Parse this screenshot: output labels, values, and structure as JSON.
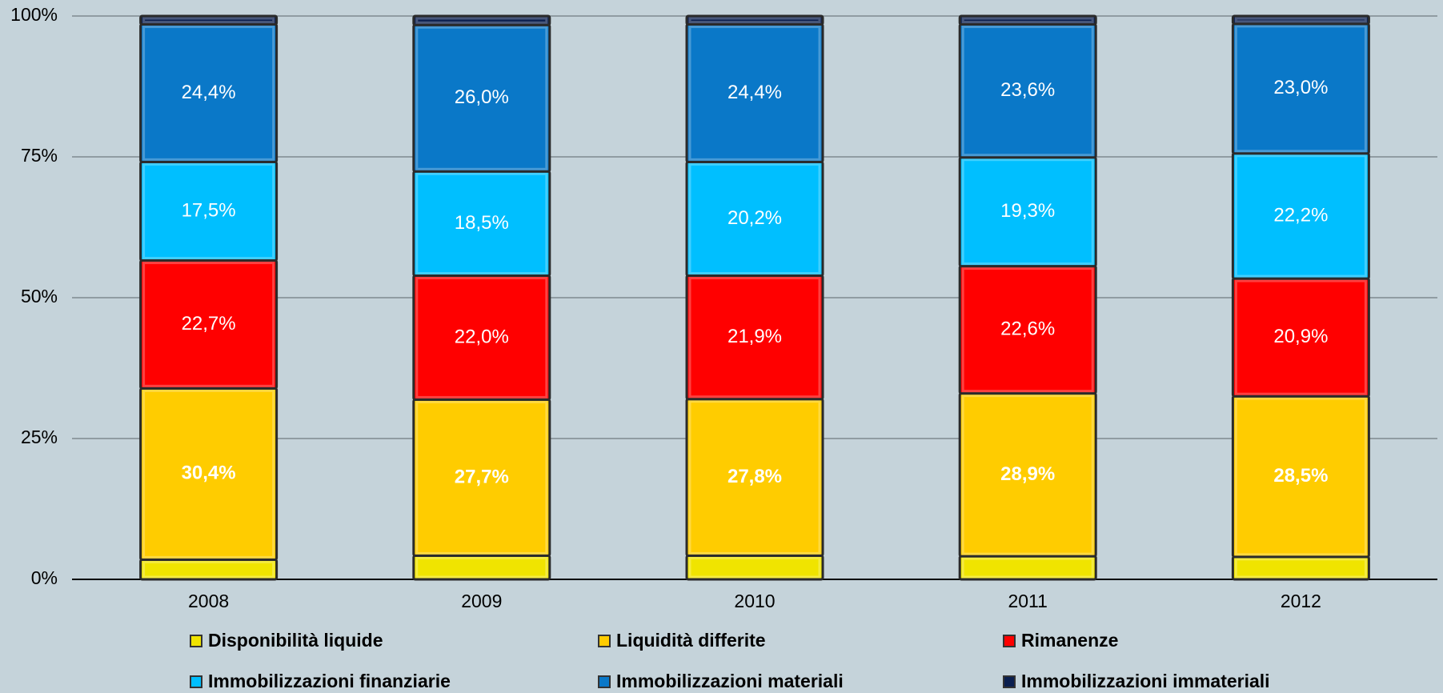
{
  "chart_data": {
    "type": "stacked_bar",
    "categories": [
      "2008",
      "2009",
      "2010",
      "2011",
      "2012"
    ],
    "series": [
      {
        "name": "Disponibilità liquide",
        "color": "#f0e400",
        "values": [
          3.5,
          4.2,
          4.2,
          4.1,
          4.0
        ]
      },
      {
        "name": "Liquidità differite",
        "color": "#ffcc00",
        "values": [
          30.4,
          27.7,
          27.8,
          28.9,
          28.5
        ],
        "value_labels": [
          "30,4%",
          "27,7%",
          "27,8%",
          "28,9%",
          "28,5%"
        ]
      },
      {
        "name": "Rimanenze",
        "color": "#ff0000",
        "values": [
          22.7,
          22.0,
          21.9,
          22.6,
          20.9
        ],
        "value_labels": [
          "22,7%",
          "22,0%",
          "21,9%",
          "22,6%",
          "20,9%"
        ]
      },
      {
        "name": "Immobilizzazioni finanziarie",
        "color": "#00bfff",
        "values": [
          17.5,
          18.5,
          20.2,
          19.3,
          22.2
        ],
        "value_labels": [
          "17,5%",
          "18,5%",
          "20,2%",
          "19,3%",
          "22,2%"
        ]
      },
      {
        "name": "Immobilizzazioni materiali",
        "color": "#0a78c8",
        "values": [
          24.4,
          26.0,
          24.4,
          23.6,
          23.0
        ],
        "value_labels": [
          "24,4%",
          "26,0%",
          "24,4%",
          "23,6%",
          "23,0%"
        ]
      },
      {
        "name": "Immobilizzazioni immateriali",
        "color": "#0b1f4f",
        "values": [
          1.5,
          1.6,
          1.5,
          1.5,
          1.4
        ]
      }
    ],
    "ylim": [
      0,
      100
    ],
    "yticks": [
      {
        "value": 0,
        "label": "0%"
      },
      {
        "value": 25,
        "label": "25%"
      },
      {
        "value": 50,
        "label": "50%"
      },
      {
        "value": 75,
        "label": "75%"
      },
      {
        "value": 100,
        "label": "100%"
      }
    ],
    "grid": true,
    "legend": "bottom"
  }
}
